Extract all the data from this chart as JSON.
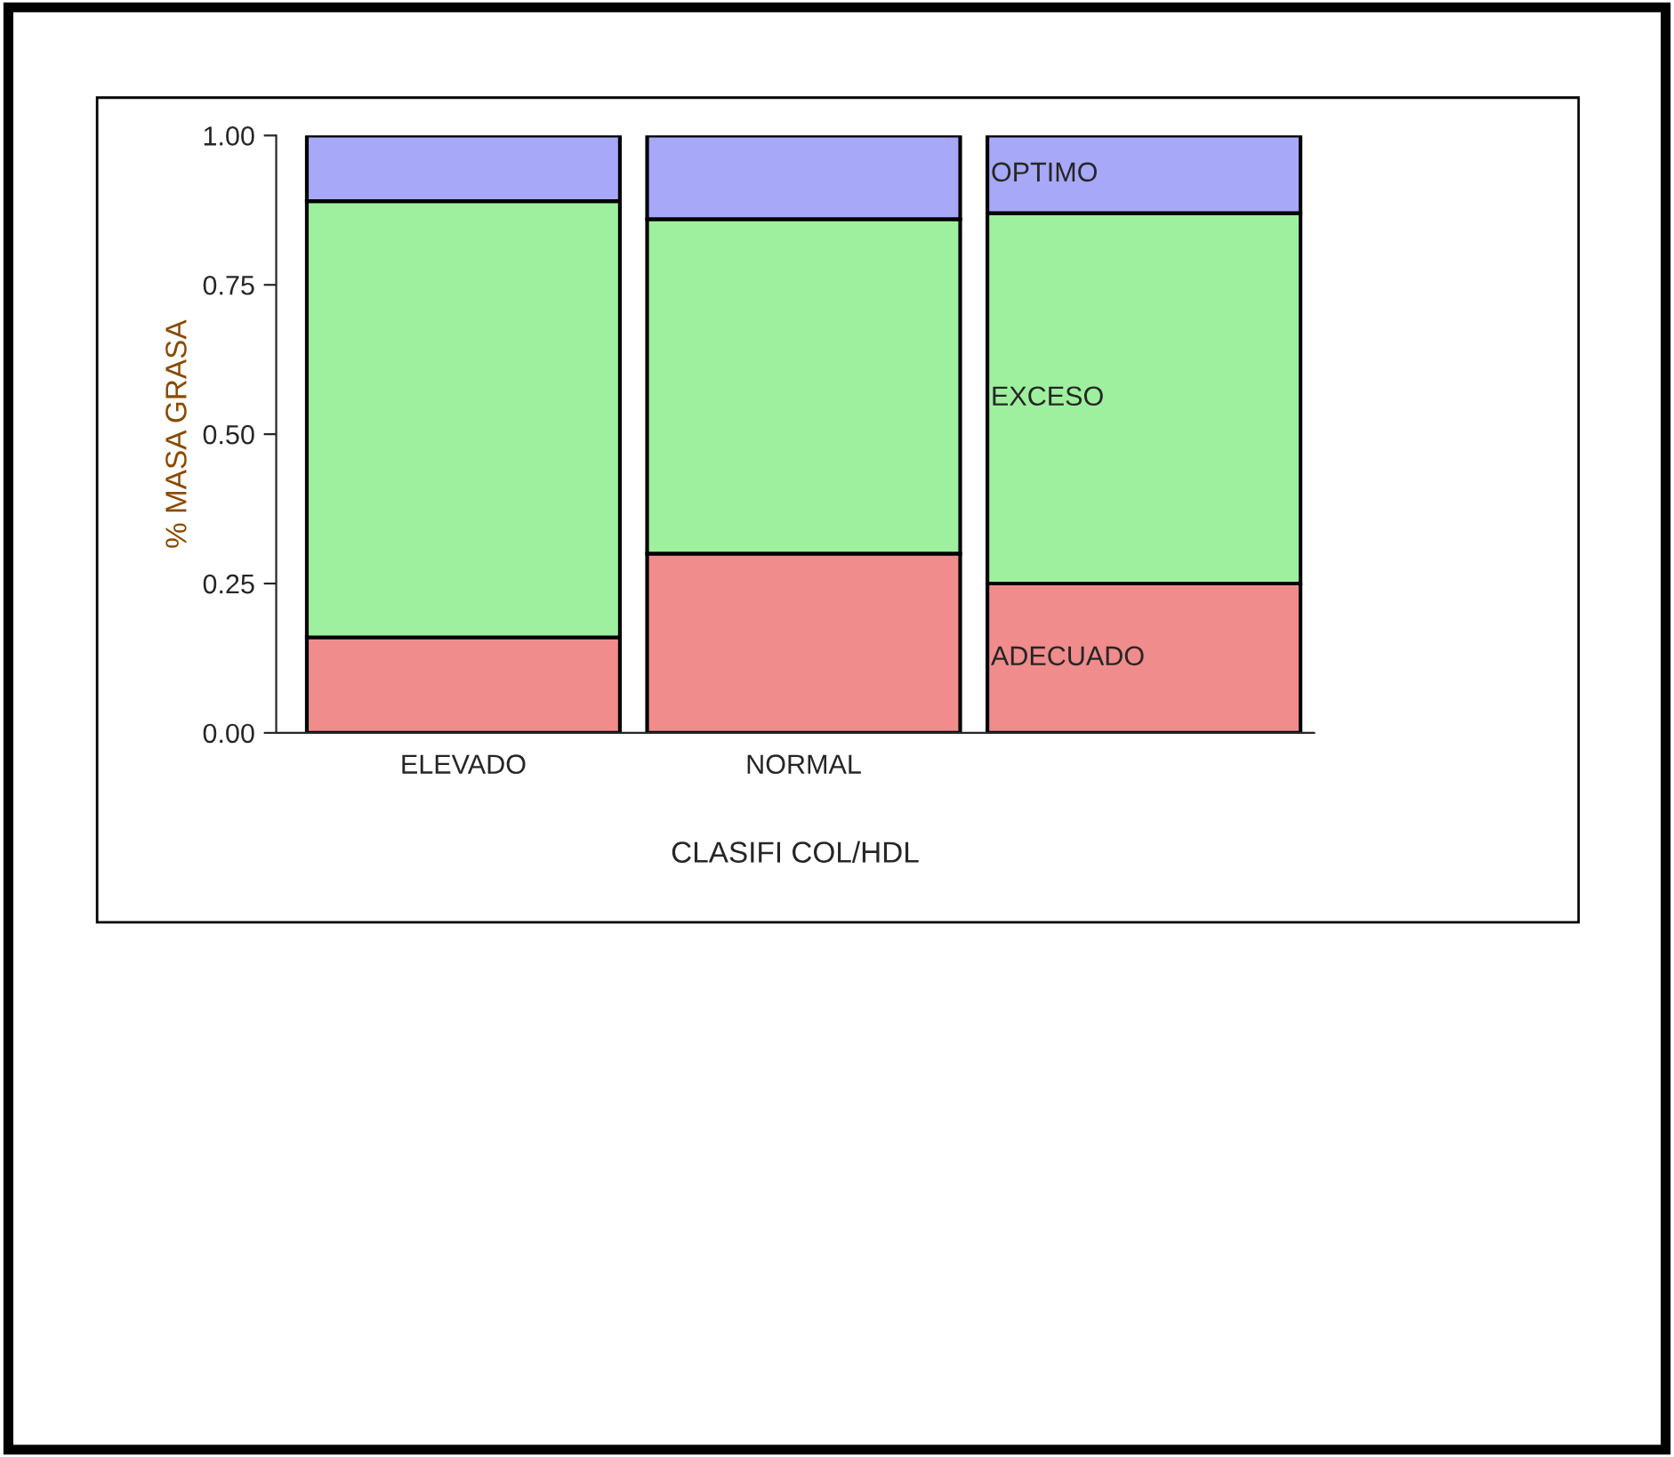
{
  "chart_data": {
    "type": "bar",
    "stacked": true,
    "xlabel": "CLASIFI COL/HDL",
    "ylabel": "% MASA GRASA",
    "categories": [
      "ELEVADO",
      "NORMAL",
      null
    ],
    "series": [
      {
        "name": "ADECUADO",
        "color": "#f08c8c",
        "values": [
          0.16,
          0.3,
          0.25
        ]
      },
      {
        "name": "EXCESO",
        "color": "#9ef09e",
        "values": [
          0.73,
          0.56,
          0.62
        ]
      },
      {
        "name": "OPTIMO",
        "color": "#a8a8f8",
        "values": [
          0.11,
          0.14,
          0.13
        ]
      }
    ],
    "ylim": [
      0,
      1
    ],
    "yticks": [
      {
        "value": 0,
        "label": "0.00"
      },
      {
        "value": 0.25,
        "label": "0.25"
      },
      {
        "value": 0.5,
        "label": "0.50"
      },
      {
        "value": 0.75,
        "label": "0.75"
      },
      {
        "value": 1,
        "label": "1.00"
      }
    ],
    "grid": false,
    "legend": false
  }
}
